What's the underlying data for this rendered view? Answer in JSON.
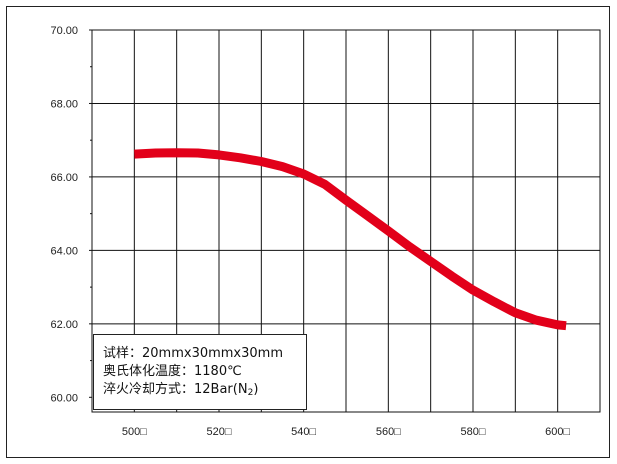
{
  "chart_data": {
    "type": "line",
    "title": "",
    "xlabel": "",
    "ylabel": "",
    "x_ticks": [
      "500",
      "520",
      "540",
      "560",
      "580",
      "600"
    ],
    "x_tick_suffix": "□",
    "y_ticks": [
      "60.00",
      "62.00",
      "64.00",
      "66.00",
      "68.00",
      "70.00"
    ],
    "xlim": [
      490,
      610
    ],
    "ylim": [
      59.6,
      70
    ],
    "grid": true,
    "series": [
      {
        "color": "#e2001a",
        "x": [
          500,
          505,
          510,
          515,
          520,
          525,
          530,
          535,
          540,
          545,
          550,
          555,
          560,
          565,
          570,
          575,
          580,
          585,
          590,
          595,
          600,
          602
        ],
        "y": [
          66.62,
          66.65,
          66.66,
          66.65,
          66.6,
          66.52,
          66.42,
          66.28,
          66.08,
          65.8,
          65.37,
          64.95,
          64.53,
          64.1,
          63.7,
          63.3,
          62.92,
          62.6,
          62.3,
          62.1,
          61.97,
          61.95
        ]
      }
    ],
    "annotation": {
      "line1": "试样：20mmx30mmx30mm",
      "line2": "奥氏体化温度：1180℃",
      "line3_prefix": "淬火冷却方式：12Bar(N",
      "line3_sub": "2",
      "line3_suffix": ")"
    }
  }
}
